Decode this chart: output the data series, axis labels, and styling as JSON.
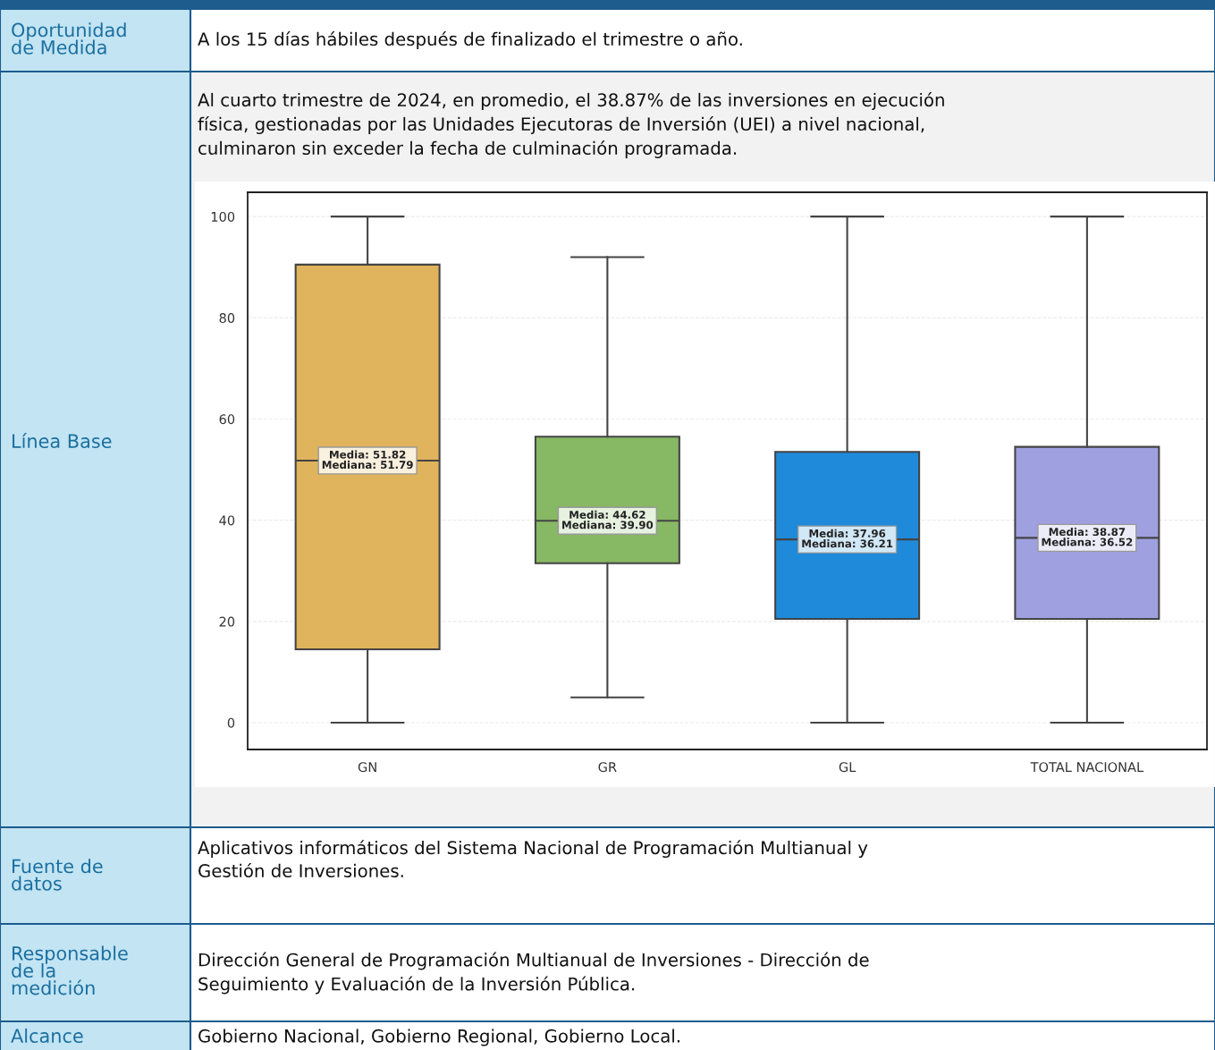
{
  "chart_data": {
    "type": "box",
    "categories": [
      "GN",
      "GR",
      "GL",
      "TOTAL NACIONAL"
    ],
    "colors": [
      "#e0b45c",
      "#87b864",
      "#1f8ad9",
      "#9fa0e0"
    ],
    "boxes": [
      {
        "low": 0,
        "q1": 14.5,
        "median": 51.79,
        "q3": 90.5,
        "high": 100
      },
      {
        "low": 5,
        "q1": 31.5,
        "median": 39.9,
        "q3": 56.5,
        "high": 92
      },
      {
        "low": 0,
        "q1": 20.5,
        "median": 36.21,
        "q3": 53.5,
        "high": 100
      },
      {
        "low": 0,
        "q1": 20.5,
        "median": 36.52,
        "q3": 54.5,
        "high": 100
      }
    ],
    "ylim": [
      -5.3,
      104.8
    ],
    "yticks": [
      0,
      20,
      40,
      60,
      80,
      100
    ],
    "grid": "y",
    "annotations": [
      "Oportunidad\nde Medida",
      "A los 15 días hábiles después de finalizado el trimestre o año.",
      "Línea Base",
      "Al cuarto trimestre de 2024, en promedio, el 38.87% de las inversiones en ejecución\nfísica, gestionadas por las Unidades Ejecutoras de Inversión (UEI) a nivel nacional,\nculminaron sin exceder la fecha de culminación programada.",
      "Fuente de\ndatos",
      "Aplicativos informáticos del Sistema Nacional de Programación Multianual y\nGestión de Inversiones.",
      "Responsable\nde la\nmedición",
      "Dirección General de Programación Multianual de Inversiones - Dirección de\nSeguimiento y Evaluación de la Inversión Pública.",
      "Alcance",
      "Gobierno Nacional, Gobierno Regional, Gobierno Local.",
      {
        "text": "Media: 51.82\nMediana: 51.79",
        "x": "GN",
        "y": 51.79
      },
      {
        "text": "Media: 44.62\nMediana: 39.90",
        "x": "GR",
        "y": 39.9
      },
      {
        "text": "Media: 37.96\nMediana: 36.21",
        "x": "GL",
        "y": 36.21
      },
      {
        "text": "Media: 38.87\nMediana: 36.52",
        "x": "TOTAL NACIONAL",
        "y": 36.52
      }
    ]
  }
}
